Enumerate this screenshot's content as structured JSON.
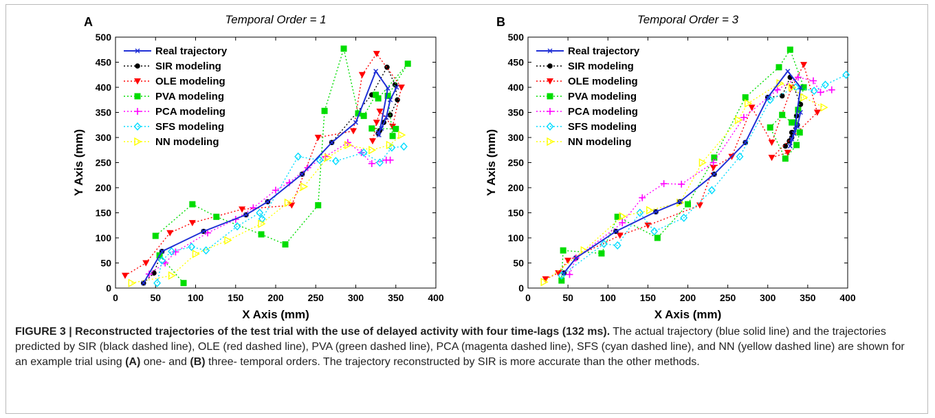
{
  "figure": {
    "caption": {
      "label": "FIGURE 3 |",
      "title": "Reconstructed trajectories of the test trial with the use of delayed activity with four time-lags (132 ms).",
      "part1": " The actual trajectory (blue solid line) and the trajectories predicted by SIR (black dashed line), OLE (red dashed line), PVA (green dashed line), PCA (magenta dashed line), SFS (cyan dashed line), and NN (yellow dashed line) are shown for an example trial using ",
      "a_ref": "(A)",
      "part2": " one- and ",
      "b_ref": "(B)",
      "part3": " three- temporal orders. The trajectory reconstructed by SIR is more accurate than the other methods."
    }
  },
  "colors": {
    "real": "#1f2fd6",
    "sir": "#000000",
    "ole": "#ff0000",
    "pva": "#00dd00",
    "pca": "#ff00ff",
    "sfs": "#00dcff",
    "nn": "#ffff00"
  },
  "chart_data": [
    {
      "type": "line",
      "panel_label": "A",
      "title": "Temporal Order = 1",
      "xlabel": "X Axis (mm)",
      "ylabel": "Y Axis (mm)",
      "xlim": [
        0,
        400
      ],
      "ylim": [
        0,
        500
      ],
      "xticks": [
        0,
        50,
        100,
        150,
        200,
        250,
        300,
        350,
        400
      ],
      "yticks": [
        0,
        50,
        100,
        150,
        200,
        250,
        300,
        350,
        400,
        450,
        500
      ],
      "grid": false,
      "legend_position": "top-left",
      "series": [
        {
          "name": "Real trajectory",
          "key": "real",
          "marker": "x",
          "dashed": false,
          "x": [
            35,
            58,
            110,
            163,
            190,
            233,
            270,
            300,
            325,
            340,
            329,
            328,
            332,
            338,
            343,
            351
          ],
          "y": [
            10,
            73,
            113,
            146,
            172,
            227,
            290,
            330,
            432,
            398,
            305,
            310,
            318,
            340,
            375,
            400
          ]
        },
        {
          "name": "SIR modeling",
          "key": "sir",
          "marker": "circle",
          "dashed": true,
          "x": [
            35,
            48,
            58,
            110,
            163,
            190,
            233,
            270,
            320,
            339,
            349,
            352,
            343,
            335,
            330,
            328
          ],
          "y": [
            10,
            30,
            73,
            113,
            146,
            172,
            227,
            290,
            385,
            440,
            405,
            375,
            345,
            330,
            314,
            308
          ]
        },
        {
          "name": "OLE modeling",
          "key": "ole",
          "marker": "triangle-down",
          "dashed": true,
          "x": [
            12,
            38,
            68,
            96,
            158,
            220,
            253,
            297,
            308,
            326,
            357,
            346,
            330,
            326,
            321
          ],
          "y": [
            25,
            50,
            110,
            130,
            157,
            165,
            300,
            313,
            425,
            467,
            400,
            322,
            352,
            330,
            293
          ]
        },
        {
          "name": "PVA modeling",
          "key": "pva",
          "marker": "square",
          "dashed": true,
          "x": [
            50,
            96,
            126,
            182,
            212,
            253,
            261,
            285,
            303,
            310,
            325,
            328,
            365,
            340,
            346,
            350,
            320
          ],
          "y": [
            104,
            167,
            142,
            107,
            87,
            165,
            353,
            477,
            348,
            343,
            385,
            378,
            447,
            383,
            303,
            317,
            318
          ],
          "extra": {
            "x": [
              85,
              55
            ],
            "y": [
              10,
              65
            ]
          }
        },
        {
          "name": "PCA modeling",
          "key": "pca",
          "marker": "plus",
          "dashed": true,
          "x": [
            42,
            62,
            75,
            115,
            150,
            172,
            200,
            217,
            240,
            262,
            290,
            307,
            320,
            338,
            343
          ],
          "y": [
            28,
            50,
            72,
            110,
            137,
            160,
            195,
            210,
            240,
            262,
            290,
            270,
            248,
            255,
            255
          ]
        },
        {
          "name": "SFS modeling",
          "key": "sfs",
          "marker": "diamond",
          "dashed": true,
          "x": [
            52,
            58,
            70,
            95,
            113,
            152,
            180,
            183,
            228,
            255,
            275,
            310,
            330,
            345,
            360
          ],
          "y": [
            10,
            55,
            73,
            82,
            75,
            123,
            150,
            138,
            262,
            255,
            253,
            270,
            250,
            280,
            282
          ]
        },
        {
          "name": "NN modeling",
          "key": "nn",
          "marker": "triangle-right",
          "dashed": true,
          "x": [
            20,
            70,
            100,
            140,
            182,
            215,
            235,
            265,
            290,
            320,
            342,
            357
          ],
          "y": [
            10,
            25,
            68,
            95,
            128,
            170,
            202,
            260,
            285,
            275,
            285,
            305
          ]
        }
      ]
    },
    {
      "type": "line",
      "panel_label": "B",
      "title": "Temporal Order = 3",
      "xlabel": "X Axis (mm)",
      "ylabel": "Y Axis (mm)",
      "xlim": [
        0,
        400
      ],
      "ylim": [
        0,
        500
      ],
      "xticks": [
        0,
        50,
        100,
        150,
        200,
        250,
        300,
        350,
        400
      ],
      "yticks": [
        0,
        50,
        100,
        150,
        200,
        250,
        300,
        350,
        400,
        450,
        500
      ],
      "grid": false,
      "legend_position": "top-left",
      "series": [
        {
          "name": "Real trajectory",
          "key": "real",
          "marker": "x",
          "dashed": false,
          "x": [
            45,
            60,
            110,
            160,
            190,
            233,
            272,
            300,
            325,
            341,
            333,
            328,
            330,
            337,
            341
          ],
          "y": [
            30,
            60,
            113,
            152,
            172,
            227,
            290,
            380,
            432,
            400,
            308,
            283,
            297,
            322,
            350
          ]
        },
        {
          "name": "SIR modeling",
          "key": "sir",
          "marker": "circle",
          "dashed": true,
          "x": [
            45,
            60,
            110,
            160,
            190,
            233,
            272,
            300,
            318,
            328,
            341,
            336,
            330,
            322,
            327,
            330,
            337
          ],
          "y": [
            30,
            60,
            113,
            152,
            172,
            227,
            290,
            380,
            383,
            420,
            366,
            343,
            300,
            283,
            293,
            310,
            325
          ]
        },
        {
          "name": "OLE modeling",
          "key": "ole",
          "marker": "triangle-down",
          "dashed": true,
          "x": [
            22,
            38,
            50,
            115,
            150,
            215,
            232,
            255,
            280,
            305,
            330,
            345,
            362,
            305,
            325
          ],
          "y": [
            18,
            30,
            55,
            105,
            125,
            165,
            240,
            262,
            360,
            290,
            400,
            445,
            350,
            260,
            270
          ]
        },
        {
          "name": "PVA modeling",
          "key": "pva",
          "marker": "square",
          "dashed": true,
          "x": [
            42,
            44,
            92,
            112,
            162,
            200,
            233,
            272,
            314,
            328,
            345,
            338,
            330,
            318,
            303,
            322,
            336,
            340,
            333
          ],
          "y": [
            15,
            75,
            69,
            142,
            100,
            167,
            260,
            380,
            440,
            475,
            400,
            355,
            330,
            345,
            320,
            258,
            285,
            310,
            330
          ]
        },
        {
          "name": "PCA modeling",
          "key": "pca",
          "marker": "plus",
          "dashed": true,
          "x": [
            52,
            60,
            118,
            143,
            170,
            192,
            232,
            270,
            312,
            338,
            357,
            366,
            380
          ],
          "y": [
            27,
            60,
            130,
            180,
            208,
            207,
            250,
            340,
            395,
            420,
            413,
            390,
            395
          ]
        },
        {
          "name": "SFS modeling",
          "key": "sfs",
          "marker": "diamond",
          "dashed": true,
          "x": [
            42,
            95,
            112,
            140,
            158,
            195,
            230,
            265,
            303,
            335,
            358,
            372,
            398
          ],
          "y": [
            25,
            88,
            85,
            150,
            113,
            140,
            195,
            262,
            375,
            400,
            393,
            405,
            425
          ]
        },
        {
          "name": "NN modeling",
          "key": "nn",
          "marker": "triangle-right",
          "dashed": true,
          "x": [
            20,
            70,
            118,
            152,
            190,
            218,
            263,
            275,
            315,
            330,
            345,
            370
          ],
          "y": [
            12,
            75,
            143,
            155,
            170,
            250,
            335,
            368,
            408,
            400,
            380,
            360
          ]
        }
      ]
    }
  ]
}
